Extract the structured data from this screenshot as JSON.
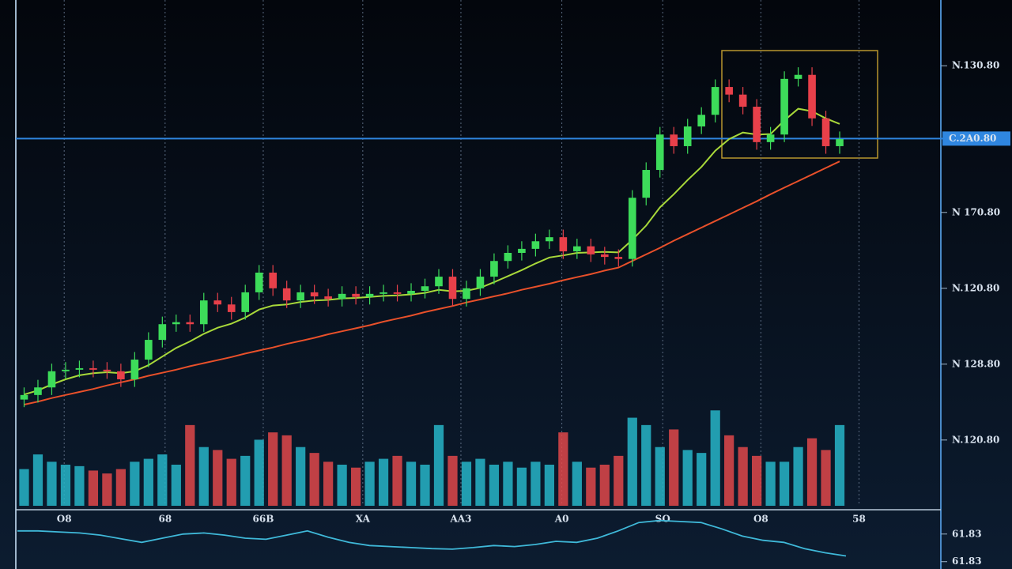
{
  "chart_data": {
    "type": "candlestick",
    "xlim": [
      -0.6,
      60.6
    ],
    "xticks": [
      {
        "value": 2.9,
        "label": "O8"
      },
      {
        "value": 10.2,
        "label": "68"
      },
      {
        "value": 17.3,
        "label": "66B"
      },
      {
        "value": 24.5,
        "label": "XA"
      },
      {
        "value": 31.6,
        "label": "AA3"
      },
      {
        "value": 38.9,
        "label": "A0"
      },
      {
        "value": 46.2,
        "label": "SO"
      },
      {
        "value": 53.3,
        "label": "O8"
      },
      {
        "value": 60.4,
        "label": "58"
      }
    ],
    "ylim": [
      0,
      100
    ],
    "yticks": [
      {
        "value": 87,
        "label": "N.130.80"
      },
      {
        "value": 58,
        "label": "N 170.80"
      },
      {
        "value": 43,
        "label": "N.120.80"
      },
      {
        "value": 28,
        "label": "N 128.80"
      },
      {
        "value": 13,
        "label": "N.120.80"
      }
    ],
    "price_line": {
      "value": 72.6,
      "label": "C.2A0.80",
      "color": "#2f86e0"
    },
    "up_color": "#3ddc5a",
    "down_color": "#e8404a",
    "open": [
      21,
      21.9,
      23.4,
      26.6,
      26.9,
      27.2,
      26.9,
      26.6,
      25,
      28.9,
      32.8,
      35.9,
      36.3,
      35.9,
      40.6,
      39.8,
      38.3,
      42.2,
      46.1,
      43,
      40.6,
      42.2,
      41.4,
      40.9,
      41.9,
      41.3,
      41.9,
      42.2,
      41.9,
      42.5,
      43.4,
      45.3,
      40.9,
      43,
      45.3,
      48.4,
      50,
      50.8,
      52.3,
      53.1,
      50.3,
      51.3,
      49.7,
      49.2,
      48.8,
      60.9,
      66.4,
      73.4,
      71.1,
      75,
      77.3,
      82.8,
      81.3,
      78.9,
      71.9,
      73.4,
      84.4,
      85.2,
      76.6,
      71.1
    ],
    "high": [
      23.4,
      24.9,
      28.1,
      28.4,
      28.7,
      28.7,
      28.4,
      28.1,
      30.4,
      34.3,
      37.4,
      37.8,
      37.8,
      42.1,
      42.1,
      41.3,
      43.7,
      47.6,
      47.6,
      44.5,
      43.7,
      43.7,
      42.9,
      43.4,
      43.4,
      43.4,
      43.7,
      43.7,
      44,
      44.9,
      46.8,
      46.8,
      44.5,
      46.8,
      49.9,
      51.5,
      52.3,
      53.8,
      54.6,
      54.6,
      52.8,
      52.8,
      51.2,
      50.7,
      62.4,
      67.9,
      74.9,
      74.9,
      76.5,
      78.8,
      84.3,
      84.3,
      82.8,
      80.4,
      74.9,
      85.9,
      86.7,
      86.7,
      78.1,
      74
    ],
    "low": [
      19.5,
      20.4,
      21.9,
      25.1,
      25.4,
      25.4,
      25.1,
      23.5,
      23.5,
      27.4,
      31.3,
      34.4,
      34.4,
      34.4,
      38.3,
      36.8,
      36.8,
      40.7,
      41.5,
      39.1,
      39.1,
      39.9,
      39.4,
      39.4,
      39.8,
      39.8,
      40.4,
      40.4,
      40.4,
      41,
      41.9,
      39.4,
      39.4,
      41.5,
      43.8,
      46.9,
      48.5,
      49.3,
      50.8,
      48.8,
      48.8,
      48.2,
      47.7,
      47.3,
      47.3,
      59.4,
      64.9,
      69.6,
      69.6,
      73.5,
      75.8,
      79.8,
      77.4,
      70.4,
      70.4,
      71.9,
      82.9,
      75.1,
      69.6,
      69.6
    ],
    "close": [
      21.9,
      23.4,
      26.6,
      26.9,
      27.2,
      26.9,
      26.6,
      25,
      28.9,
      32.8,
      35.9,
      36.3,
      35.9,
      40.6,
      39.8,
      38.3,
      42.2,
      46.1,
      43,
      40.6,
      42.2,
      41.4,
      40.9,
      41.9,
      41.3,
      41.9,
      42.2,
      41.9,
      42.5,
      43.4,
      45.3,
      40.9,
      43,
      45.3,
      48.4,
      50,
      50.8,
      52.3,
      53.1,
      50.3,
      51.3,
      49.7,
      49.2,
      48.8,
      60.9,
      66.4,
      73.4,
      71.1,
      75,
      77.3,
      82.8,
      81.3,
      78.9,
      71.9,
      73.4,
      84.4,
      85.2,
      76.6,
      71.1,
      72.5
    ],
    "series": [
      {
        "color": "#a8d83a",
        "values": [
          22,
          22.8,
          24,
          25,
          25.8,
          26.2,
          26.4,
          26.2,
          26.6,
          27.8,
          29.5,
          31.2,
          32.5,
          34,
          35.2,
          36,
          37.2,
          38.8,
          39.6,
          39.8,
          40.3,
          40.6,
          40.7,
          41,
          41.1,
          41.3,
          41.5,
          41.6,
          41.8,
          42.1,
          42.7,
          42.4,
          42.5,
          43.1,
          44.2,
          45.4,
          46.6,
          47.9,
          49.1,
          49.5,
          50,
          50.1,
          50.2,
          50.1,
          52.6,
          55.4,
          59,
          61.6,
          64.4,
          67,
          70.2,
          72.5,
          73.8,
          73.4,
          73.5,
          76.2,
          78.5,
          78,
          76.6,
          75.5
        ]
      },
      {
        "color": "#e8502a",
        "values": [
          20,
          20.6,
          21.3,
          21.9,
          22.5,
          23.1,
          23.8,
          24.4,
          25,
          25.7,
          26.3,
          26.9,
          27.6,
          28.2,
          28.8,
          29.4,
          30.1,
          30.7,
          31.3,
          32,
          32.6,
          33.2,
          33.9,
          34.5,
          35.1,
          35.7,
          36.4,
          37,
          37.6,
          38.3,
          38.9,
          39.5,
          40.2,
          40.8,
          41.4,
          42,
          42.7,
          43.3,
          43.9,
          44.6,
          45.2,
          45.8,
          46.5,
          47.1,
          48.4,
          49.7,
          51,
          52.4,
          53.7,
          55,
          56.3,
          57.6,
          58.9,
          60.2,
          61.6,
          62.9,
          64.2,
          65.5,
          66.8,
          68.1
        ]
      }
    ],
    "volume": {
      "lim": [
        0,
        70
      ],
      "up_color": "#27b5c8",
      "down_color": "#e0484a",
      "values": [
        25,
        35,
        30,
        28,
        27,
        24,
        22,
        25,
        30,
        32,
        35,
        28,
        55,
        40,
        38,
        32,
        34,
        45,
        50,
        48,
        40,
        36,
        30,
        28,
        26,
        30,
        32,
        34,
        30,
        28,
        55,
        34,
        30,
        32,
        28,
        30,
        26,
        30,
        28,
        50,
        30,
        26,
        28,
        34,
        60,
        55,
        40,
        52,
        38,
        36,
        65,
        48,
        40,
        34,
        30,
        30,
        40,
        46,
        38,
        55
      ]
    },
    "oscillator": {
      "lim": [
        0,
        100
      ],
      "color": "#3fb8d8",
      "ticks": [
        {
          "value": 64,
          "label": "61.83"
        },
        {
          "value": 11,
          "label": "61.83"
        }
      ],
      "values": [
        70,
        70,
        68,
        66,
        62,
        55,
        48,
        56,
        64,
        66,
        62,
        56,
        54,
        62,
        70,
        58,
        48,
        42,
        40,
        38,
        36,
        35,
        38,
        42,
        40,
        44,
        50,
        48,
        56,
        70,
        86,
        90,
        88,
        86,
        74,
        60,
        52,
        48,
        36,
        28,
        22
      ]
    }
  }
}
